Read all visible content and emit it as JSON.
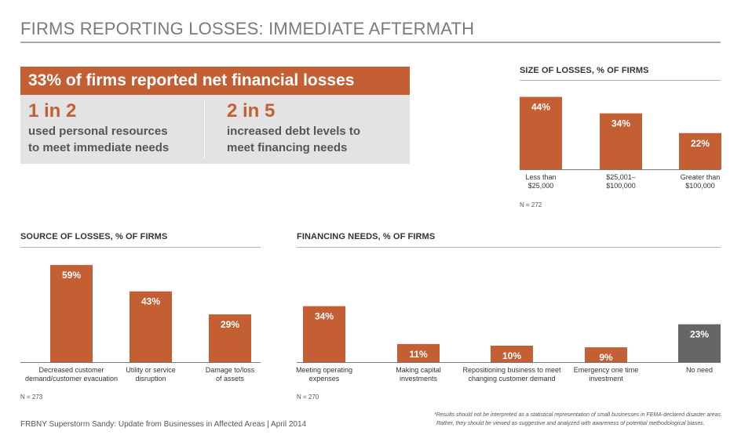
{
  "title": "FIRMS REPORTING LOSSES: IMMEDIATE AFTERMATH",
  "headline": {
    "banner": "33% of firms reported net financial losses",
    "stats": [
      {
        "big": "1 in 2",
        "line1": "used personal resources",
        "line2": "to meet immediate needs"
      },
      {
        "big": "2 in 5",
        "line1": "increased debt levels to",
        "line2": "meet financing needs"
      }
    ]
  },
  "colors": {
    "accent": "#c45e33",
    "neutral": "#666666",
    "box": "#e3e3e3"
  },
  "chart_data": [
    {
      "type": "bar",
      "title": "SIZE OF LOSSES, % OF FIRMS",
      "categories": [
        [
          "Less than",
          "$25,000"
        ],
        [
          "$25,001–",
          "$100,000"
        ],
        [
          "Greater than",
          "$100,000"
        ]
      ],
      "values": [
        44,
        34,
        22
      ],
      "value_labels": [
        "44%",
        "34%",
        "22%"
      ],
      "note": "N = 272",
      "ylim": [
        0,
        59
      ]
    },
    {
      "type": "bar",
      "title": "SOURCE OF LOSSES, % OF FIRMS",
      "categories": [
        [
          "Decreased customer",
          "demand/customer evacuation"
        ],
        [
          "Utility or service",
          "disruption"
        ],
        [
          "Damage to/loss",
          "of assets"
        ]
      ],
      "values": [
        59,
        43,
        29
      ],
      "value_labels": [
        "59%",
        "43%",
        "29%"
      ],
      "note": "N = 273",
      "ylim": [
        0,
        59
      ]
    },
    {
      "type": "bar",
      "title": "FINANCING NEEDS, % OF FIRMS",
      "categories": [
        [
          "Meeting operating",
          "expenses"
        ],
        [
          "Making capital",
          "investments"
        ],
        [
          "Repositioning business to meet",
          "changing customer demand"
        ],
        [
          "Emergency one time",
          "investment"
        ],
        [
          "No need"
        ]
      ],
      "values": [
        34,
        11,
        10,
        9,
        23
      ],
      "value_labels": [
        "34%",
        "11%",
        "10%",
        "9%",
        "23%"
      ],
      "bar_colors": [
        "#c45e33",
        "#c45e33",
        "#c45e33",
        "#c45e33",
        "#666666"
      ],
      "note": "N = 270",
      "ylim": [
        0,
        59
      ]
    }
  ],
  "footer": {
    "source": "FRBNY Superstorm Sandy: Update from Businesses in Affected Areas | April 2014",
    "disclaimer_line1": "*Results should not be interpreted as a statistical representation of small businesses in FEMA-declared disaster areas.",
    "disclaimer_line2": "Rather, they should be viewed as suggestive and analyzed with awareness of potential methodological biases."
  }
}
